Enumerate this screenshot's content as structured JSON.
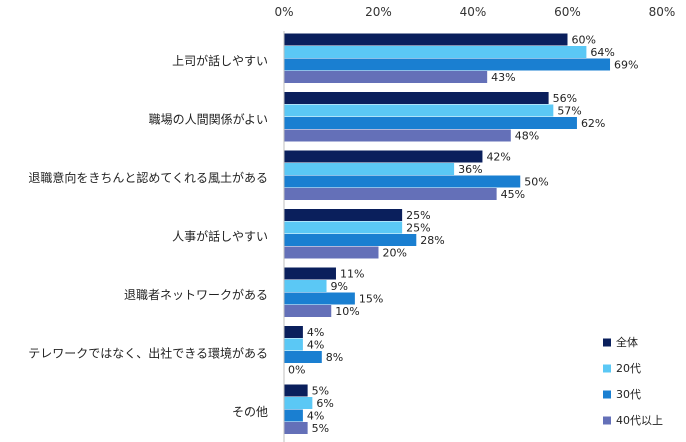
{
  "chart_data": {
    "type": "bar",
    "orientation": "horizontal",
    "categories": [
      "上司が話しやすい",
      "職場の人間関係がよい",
      "退職意向をきちんと認めてくれる風土がある",
      "人事が話しやすい",
      "退職者ネットワークがある",
      "テレワークではなく、出社できる環境がある",
      "その他"
    ],
    "series": [
      {
        "name": "全体",
        "color": "#0a1f5c",
        "values": [
          60,
          56,
          42,
          25,
          11,
          4,
          5
        ]
      },
      {
        "name": "20代",
        "color": "#5bc8f5",
        "values": [
          64,
          57,
          36,
          25,
          9,
          4,
          6
        ]
      },
      {
        "name": "30代",
        "color": "#1a7fd1",
        "values": [
          69,
          62,
          50,
          28,
          15,
          8,
          4
        ]
      },
      {
        "name": "40代以上",
        "color": "#6470b8",
        "values": [
          43,
          48,
          45,
          20,
          10,
          0,
          5
        ]
      }
    ],
    "xlim": [
      0,
      80
    ],
    "x_ticks": [
      0,
      20,
      40,
      60,
      80
    ],
    "tick_suffix": "%",
    "value_suffix": "%",
    "legend_position": "bottom-right",
    "grid": false
  }
}
